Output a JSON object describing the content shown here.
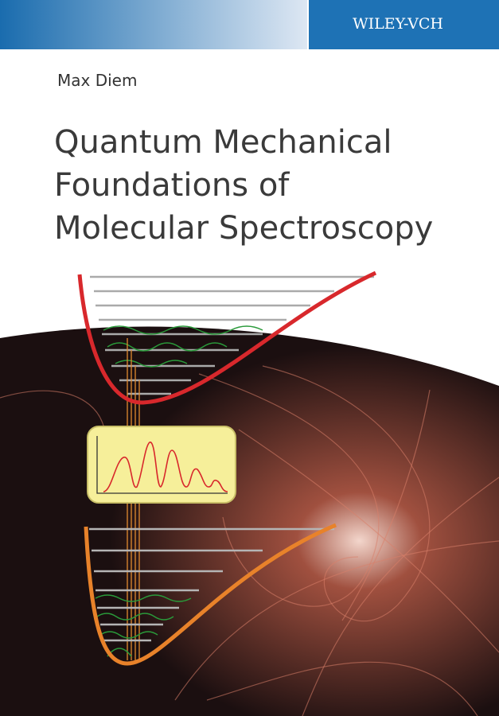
{
  "publisher": "WILEY-VCH",
  "author": "Max Diem",
  "title": [
    "Quantum Mechanical",
    "Foundations of",
    "Molecular Spectroscopy"
  ]
}
